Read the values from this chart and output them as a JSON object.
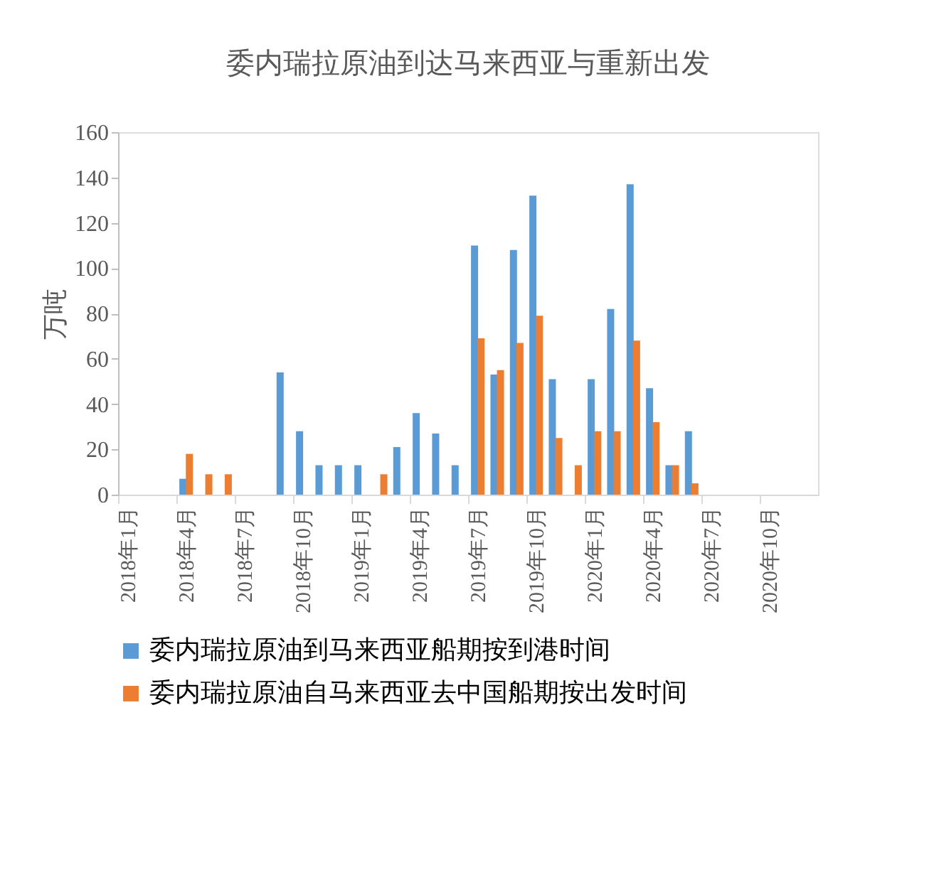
{
  "chart_data": {
    "type": "bar",
    "title": "委内瑞拉原油到达马来西亚与重新出发",
    "ylabel": "万吨",
    "categories": [
      "2018年1月",
      null,
      null,
      "2018年4月",
      null,
      null,
      "2018年7月",
      null,
      null,
      "2018年10月",
      null,
      null,
      "2019年1月",
      null,
      null,
      "2019年4月",
      null,
      null,
      "2019年7月",
      null,
      null,
      "2019年10月",
      null,
      null,
      "2020年1月",
      null,
      null,
      "2020年4月",
      null,
      null,
      "2020年7月",
      null,
      null,
      "2020年10月",
      null,
      null
    ],
    "series": [
      {
        "name": "委内瑞拉原油到马来西亚船期按到港时间",
        "color": "#5b9bd5",
        "values": [
          null,
          null,
          null,
          7,
          null,
          null,
          null,
          null,
          54,
          28,
          13,
          13,
          13,
          null,
          21,
          36,
          27,
          13,
          110,
          53,
          108,
          132,
          51,
          null,
          51,
          82,
          137,
          47,
          13,
          28,
          null,
          null,
          null,
          null,
          null,
          null
        ]
      },
      {
        "name": "委内瑞拉原油自马来西亚去中国船期按出发时间",
        "color": "#ed7d31",
        "values": [
          null,
          null,
          null,
          18,
          9,
          9,
          null,
          null,
          null,
          null,
          null,
          null,
          null,
          9,
          null,
          null,
          null,
          null,
          69,
          55,
          67,
          79,
          25,
          13,
          28,
          28,
          68,
          32,
          13,
          5,
          null,
          null,
          null,
          null,
          null,
          null
        ]
      }
    ],
    "ylim": [
      0,
      160
    ],
    "yticks": [
      0,
      20,
      40,
      60,
      80,
      100,
      120,
      140,
      160
    ],
    "grid": false,
    "legend": "bottom"
  }
}
